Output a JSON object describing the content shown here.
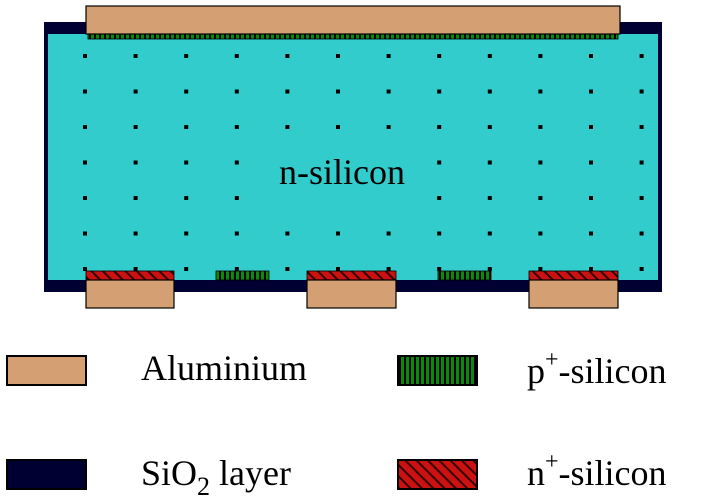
{
  "diagram": {
    "bulk_label": "n-silicon",
    "colors": {
      "aluminium": "#D4A073",
      "sio2": "#000033",
      "n_silicon": "#33CCCC",
      "p_plus": "#0A8A0A",
      "n_plus": "#CC1111"
    }
  },
  "legend": {
    "aluminium": "Aluminium",
    "sio2": {
      "prefix": "SiO",
      "sub": "2",
      "suffix": " layer"
    },
    "p_plus": {
      "prefix": "p",
      "sup": "+",
      "suffix": "-silicon"
    },
    "n_plus": {
      "prefix": "n",
      "sup": "+",
      "suffix": "-silicon"
    }
  }
}
